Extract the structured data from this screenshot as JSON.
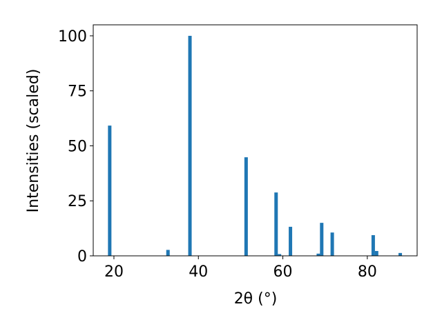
{
  "chart_data": {
    "type": "bar",
    "xlabel": "2θ (°)",
    "ylabel": "Intensities (scaled)",
    "x": [
      19.0,
      32.8,
      38.0,
      51.3,
      58.4,
      59.2,
      61.8,
      68.4,
      69.2,
      71.7,
      81.4,
      82.2,
      87.8
    ],
    "values": [
      59.2,
      2.7,
      100,
      44.8,
      28.8,
      0.8,
      13.2,
      1.0,
      15.0,
      10.6,
      9.4,
      2.2,
      1.3
    ],
    "color": "#1f77b4",
    "xlim": [
      15.1,
      91.8
    ],
    "ylim": [
      0,
      105
    ],
    "xticks": [
      20,
      40,
      60,
      80
    ],
    "yticks": [
      0,
      25,
      50,
      75,
      100
    ],
    "grid": false
  }
}
